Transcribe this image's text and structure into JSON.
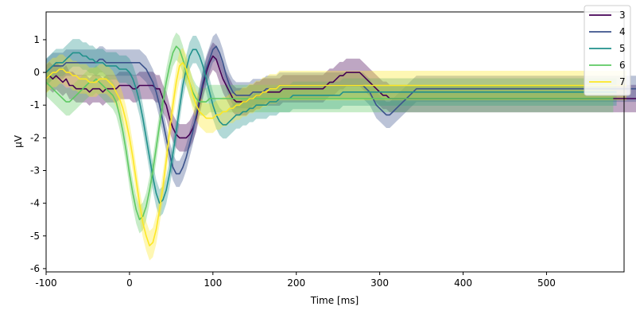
{
  "chart_data": {
    "type": "line",
    "xlabel": "Time [ms]",
    "ylabel": "µV",
    "xlim": [
      -100,
      593
    ],
    "ylim": [
      -6.1,
      1.85
    ],
    "xticks": [
      -100,
      0,
      100,
      200,
      300,
      400,
      500
    ],
    "yticks": [
      -6,
      -5,
      -4,
      -3,
      -2,
      -1,
      0,
      1
    ],
    "grid": false,
    "legend_position": "top-right",
    "shaded_band": "confidence interval",
    "x_start": -100,
    "x_step": 4,
    "series": [
      {
        "name": "3",
        "color": "#440154",
        "band": 0.42,
        "values": [
          -0.2,
          -0.1,
          -0.2,
          -0.1,
          -0.2,
          -0.3,
          -0.2,
          -0.4,
          -0.4,
          -0.5,
          -0.5,
          -0.5,
          -0.5,
          -0.6,
          -0.5,
          -0.5,
          -0.5,
          -0.6,
          -0.5,
          -0.5,
          -0.5,
          -0.5,
          -0.4,
          -0.4,
          -0.4,
          -0.4,
          -0.5,
          -0.5,
          -0.4,
          -0.4,
          -0.4,
          -0.4,
          -0.4,
          -0.5,
          -0.5,
          -0.8,
          -1.0,
          -1.4,
          -1.7,
          -1.9,
          -2.0,
          -2.0,
          -2.0,
          -1.9,
          -1.7,
          -1.4,
          -0.9,
          -0.4,
          0.0,
          0.3,
          0.5,
          0.4,
          0.1,
          -0.2,
          -0.4,
          -0.6,
          -0.8,
          -0.9,
          -0.9,
          -0.9,
          -0.9,
          -0.8,
          -0.8,
          -0.7,
          -0.7,
          -0.6,
          -0.6,
          -0.6,
          -0.6,
          -0.6,
          -0.6,
          -0.5,
          -0.5,
          -0.5,
          -0.5,
          -0.5,
          -0.5,
          -0.5,
          -0.5,
          -0.5,
          -0.5,
          -0.5,
          -0.5,
          -0.5,
          -0.4,
          -0.3,
          -0.3,
          -0.2,
          -0.1,
          -0.1,
          0.0,
          0.0,
          0.0,
          0.0,
          0.0,
          -0.1,
          -0.2,
          -0.3,
          -0.4,
          -0.5,
          -0.6,
          -0.7,
          -0.7,
          -0.8,
          -0.8,
          -0.8,
          -0.8,
          -0.8,
          -0.8,
          -0.8,
          -0.8,
          -0.8,
          -0.8,
          -0.8,
          -0.8,
          -0.8,
          -0.8,
          -0.8,
          -0.8,
          -0.8,
          -0.8,
          -0.8,
          -0.8,
          -0.8,
          -0.8,
          -0.8,
          -0.8,
          -0.8,
          -0.8,
          -0.8,
          -0.8,
          -0.8,
          -0.8,
          -0.8,
          -0.8,
          -0.8,
          -0.8,
          -0.8,
          -0.8,
          -0.8,
          -0.8,
          -0.8,
          -0.8,
          -0.8,
          -0.8,
          -0.8,
          -0.8,
          -0.8,
          -0.8,
          -0.8,
          -0.8,
          -0.8,
          -0.8,
          -0.8,
          -0.8,
          -0.8,
          -0.8,
          -0.8,
          -0.8,
          -0.8,
          -0.8,
          -0.8,
          -0.8,
          -0.8,
          -0.8,
          -0.8,
          -0.8,
          -0.8,
          -0.8,
          -0.8,
          -0.8,
          -0.8,
          -0.8,
          -0.8,
          -0.8,
          -0.8,
          -0.8,
          -0.8
        ]
      },
      {
        "name": "4",
        "color": "#3b528b",
        "band": 0.4,
        "values": [
          0.0,
          0.1,
          0.2,
          0.2,
          0.2,
          0.2,
          0.3,
          0.3,
          0.3,
          0.3,
          0.3,
          0.3,
          0.3,
          0.3,
          0.3,
          0.3,
          0.4,
          0.4,
          0.3,
          0.3,
          0.3,
          0.3,
          0.3,
          0.3,
          0.3,
          0.3,
          0.3,
          0.3,
          0.3,
          0.2,
          0.1,
          -0.1,
          -0.3,
          -0.6,
          -1.0,
          -1.5,
          -2.0,
          -2.5,
          -2.9,
          -3.1,
          -3.1,
          -2.9,
          -2.6,
          -2.2,
          -1.8,
          -1.3,
          -0.8,
          -0.3,
          0.1,
          0.4,
          0.7,
          0.8,
          0.6,
          0.3,
          -0.1,
          -0.4,
          -0.6,
          -0.7,
          -0.7,
          -0.7,
          -0.7,
          -0.7,
          -0.6,
          -0.6,
          -0.6,
          -0.6,
          -0.5,
          -0.5,
          -0.5,
          -0.5,
          -0.4,
          -0.4,
          -0.4,
          -0.4,
          -0.4,
          -0.4,
          -0.4,
          -0.4,
          -0.4,
          -0.4,
          -0.4,
          -0.4,
          -0.4,
          -0.4,
          -0.4,
          -0.4,
          -0.4,
          -0.4,
          -0.4,
          -0.4,
          -0.4,
          -0.4,
          -0.4,
          -0.4,
          -0.4,
          -0.4,
          -0.5,
          -0.6,
          -0.8,
          -1.0,
          -1.1,
          -1.2,
          -1.3,
          -1.3,
          -1.2,
          -1.1,
          -1.0,
          -0.9,
          -0.8,
          -0.7,
          -0.6,
          -0.5,
          -0.5,
          -0.5,
          -0.5,
          -0.5,
          -0.5,
          -0.5,
          -0.5,
          -0.5,
          -0.5,
          -0.5,
          -0.5,
          -0.5,
          -0.5,
          -0.5,
          -0.5,
          -0.5,
          -0.5,
          -0.5,
          -0.5,
          -0.5,
          -0.5,
          -0.5,
          -0.5,
          -0.5,
          -0.5,
          -0.5,
          -0.5,
          -0.5,
          -0.5,
          -0.5,
          -0.5,
          -0.5,
          -0.5,
          -0.5,
          -0.5,
          -0.5,
          -0.5,
          -0.5,
          -0.5,
          -0.5,
          -0.5,
          -0.5,
          -0.5,
          -0.5,
          -0.5,
          -0.5,
          -0.5,
          -0.5,
          -0.5,
          -0.5,
          -0.5,
          -0.5,
          -0.5,
          -0.5,
          -0.5,
          -0.5,
          -0.5,
          -0.5,
          -0.5,
          -0.5,
          -0.5,
          -0.5,
          -0.5,
          -0.5,
          -0.5,
          -0.5,
          -0.5,
          -0.5,
          -0.5,
          -0.5,
          -0.5,
          -0.5,
          -0.5,
          -0.5,
          -0.5,
          -0.5,
          -0.5,
          -0.5,
          -0.5,
          -1.5
        ]
      },
      {
        "name": "5",
        "color": "#21918c",
        "band": 0.42,
        "values": [
          0.0,
          0.1,
          0.2,
          0.3,
          0.3,
          0.3,
          0.4,
          0.5,
          0.6,
          0.6,
          0.6,
          0.5,
          0.5,
          0.4,
          0.4,
          0.3,
          0.3,
          0.3,
          0.2,
          0.2,
          0.2,
          0.2,
          0.1,
          0.1,
          0.1,
          0.0,
          -0.2,
          -0.5,
          -0.9,
          -1.4,
          -2.0,
          -2.6,
          -3.2,
          -3.7,
          -4.0,
          -3.9,
          -3.6,
          -3.1,
          -2.5,
          -1.8,
          -1.1,
          -0.4,
          0.1,
          0.5,
          0.7,
          0.7,
          0.5,
          0.2,
          -0.2,
          -0.6,
          -1.0,
          -1.3,
          -1.5,
          -1.6,
          -1.6,
          -1.5,
          -1.4,
          -1.3,
          -1.3,
          -1.2,
          -1.2,
          -1.1,
          -1.1,
          -1.0,
          -1.0,
          -1.0,
          -1.0,
          -0.9,
          -0.9,
          -0.9,
          -0.8,
          -0.8,
          -0.8,
          -0.8,
          -0.7,
          -0.7,
          -0.7,
          -0.7,
          -0.7,
          -0.7,
          -0.7,
          -0.7,
          -0.7,
          -0.7,
          -0.7,
          -0.7,
          -0.7,
          -0.7,
          -0.7,
          -0.6,
          -0.6,
          -0.6,
          -0.6,
          -0.6,
          -0.6,
          -0.6,
          -0.6,
          -0.6,
          -0.6,
          -0.6,
          -0.6,
          -0.6,
          -0.6,
          -0.6,
          -0.6,
          -0.6,
          -0.6,
          -0.6,
          -0.6,
          -0.6,
          -0.6,
          -0.6,
          -0.6,
          -0.6,
          -0.6,
          -0.6,
          -0.6,
          -0.6,
          -0.6,
          -0.6,
          -0.6,
          -0.6,
          -0.6,
          -0.6,
          -0.6,
          -0.6,
          -0.6,
          -0.6,
          -0.6,
          -0.6,
          -0.6,
          -0.6,
          -0.6,
          -0.6,
          -0.6,
          -0.6,
          -0.6,
          -0.6,
          -0.6,
          -0.6,
          -0.6,
          -0.6,
          -0.6,
          -0.6,
          -0.6,
          -0.6,
          -0.6,
          -0.6,
          -0.6,
          -0.6,
          -0.6,
          -0.6,
          -0.6,
          -0.6,
          -0.6,
          -0.6,
          -0.6,
          -0.6,
          -0.6,
          -0.6,
          -0.6,
          -0.6,
          -0.6,
          -0.6,
          -0.6,
          -0.6,
          -0.6,
          -0.6,
          -0.6,
          -0.6,
          -0.6,
          -0.6
        ]
      },
      {
        "name": "6",
        "color": "#5ec962",
        "band": 0.42,
        "values": [
          -0.3,
          -0.4,
          -0.5,
          -0.6,
          -0.7,
          -0.8,
          -0.9,
          -0.9,
          -0.8,
          -0.7,
          -0.6,
          -0.5,
          -0.4,
          -0.3,
          -0.3,
          -0.2,
          -0.3,
          -0.4,
          -0.5,
          -0.6,
          -0.7,
          -0.9,
          -1.3,
          -1.8,
          -2.4,
          -3.1,
          -3.7,
          -4.2,
          -4.5,
          -4.4,
          -4.1,
          -3.6,
          -3.0,
          -2.3,
          -1.6,
          -0.9,
          -0.3,
          0.2,
          0.6,
          0.8,
          0.7,
          0.4,
          0.0,
          -0.3,
          -0.6,
          -0.8,
          -0.9,
          -0.9,
          -0.9,
          -0.8,
          -0.8,
          -0.8,
          -0.8,
          -0.8,
          -0.8,
          -0.8,
          -0.8,
          -0.8,
          -0.8,
          -0.8,
          -0.8,
          -0.8,
          -0.8,
          -0.8,
          -0.8,
          -0.8,
          -0.8,
          -0.8,
          -0.8,
          -0.8,
          -0.8,
          -0.8,
          -0.8,
          -0.8,
          -0.8,
          -0.8,
          -0.8,
          -0.8,
          -0.8,
          -0.8,
          -0.8,
          -0.8,
          -0.8,
          -0.8,
          -0.8,
          -0.8,
          -0.8,
          -0.8,
          -0.8,
          -0.8,
          -0.8,
          -0.8,
          -0.8,
          -0.8,
          -0.8,
          -0.8,
          -0.8,
          -0.8,
          -0.8,
          -0.8,
          -0.8,
          -0.8,
          -0.8,
          -0.8,
          -0.8,
          -0.8,
          -0.8,
          -0.8,
          -0.8,
          -0.8,
          -0.8,
          -0.8,
          -0.8,
          -0.8,
          -0.8,
          -0.8,
          -0.8,
          -0.8,
          -0.8,
          -0.8,
          -0.8,
          -0.8,
          -0.8,
          -0.8,
          -0.8,
          -0.8,
          -0.8,
          -0.8,
          -0.8,
          -0.8,
          -0.8,
          -0.8,
          -0.8,
          -0.8,
          -0.8,
          -0.8,
          -0.8,
          -0.8,
          -0.8,
          -0.8,
          -0.8,
          -0.8,
          -0.8,
          -0.8,
          -0.8,
          -0.8,
          -0.8,
          -0.8,
          -0.8,
          -0.8,
          -0.8,
          -0.8,
          -0.8,
          -0.8,
          -0.8,
          -0.8,
          -0.8,
          -0.8,
          -0.8,
          -0.8,
          -0.8,
          -0.8,
          -0.8,
          -0.8,
          -0.8,
          -0.8,
          -0.8,
          -0.8,
          -0.8,
          -0.8,
          -0.8
        ]
      },
      {
        "name": "7",
        "color": "#fde725",
        "band": 0.45,
        "values": [
          -0.2,
          -0.1,
          0.0,
          0.0,
          0.1,
          0.1,
          0.0,
          0.0,
          -0.1,
          -0.1,
          -0.2,
          -0.2,
          -0.2,
          -0.3,
          -0.3,
          -0.3,
          -0.2,
          -0.2,
          -0.2,
          -0.3,
          -0.4,
          -0.6,
          -0.8,
          -1.1,
          -1.5,
          -2.0,
          -2.6,
          -3.3,
          -4.0,
          -4.6,
          -5.0,
          -5.3,
          -5.2,
          -4.8,
          -4.2,
          -3.5,
          -2.7,
          -1.8,
          -1.0,
          -0.3,
          0.2,
          0.3,
          0.1,
          -0.3,
          -0.7,
          -1.0,
          -1.2,
          -1.3,
          -1.4,
          -1.4,
          -1.4,
          -1.3,
          -1.3,
          -1.2,
          -1.2,
          -1.1,
          -1.1,
          -1.0,
          -1.0,
          -0.9,
          -0.9,
          -0.8,
          -0.8,
          -0.7,
          -0.7,
          -0.6,
          -0.6,
          -0.5,
          -0.5,
          -0.5,
          -0.4,
          -0.4,
          -0.4,
          -0.4,
          -0.4,
          -0.4,
          -0.4,
          -0.4,
          -0.4,
          -0.4,
          -0.4,
          -0.4,
          -0.4,
          -0.4,
          -0.4,
          -0.4,
          -0.4,
          -0.4,
          -0.4,
          -0.4,
          -0.4,
          -0.4,
          -0.4,
          -0.4,
          -0.4,
          -0.4,
          -0.4,
          -0.4,
          -0.4,
          -0.4,
          -0.4,
          -0.4,
          -0.4,
          -0.4,
          -0.4,
          -0.4,
          -0.4,
          -0.4,
          -0.4,
          -0.4,
          -0.4,
          -0.4,
          -0.4,
          -0.4,
          -0.4,
          -0.4,
          -0.4,
          -0.4,
          -0.4,
          -0.4,
          -0.4,
          -0.4,
          -0.4,
          -0.4,
          -0.4,
          -0.4,
          -0.4,
          -0.4,
          -0.4,
          -0.4,
          -0.4,
          -0.4,
          -0.4,
          -0.4,
          -0.4,
          -0.4,
          -0.4,
          -0.4,
          -0.4,
          -0.4,
          -0.4,
          -0.4,
          -0.4,
          -0.4,
          -0.4,
          -0.4,
          -0.4,
          -0.4,
          -0.4,
          -0.4,
          -0.4,
          -0.4,
          -0.4,
          -0.4,
          -0.4,
          -0.4,
          -0.4,
          -0.4,
          -0.4,
          -0.4,
          -0.4,
          -0.4,
          -0.4,
          -0.4,
          -0.4,
          -0.4,
          -0.4,
          -0.4,
          -0.4,
          -0.4,
          -0.4,
          -0.4,
          -0.4,
          -0.4,
          -0.4
        ]
      }
    ]
  }
}
